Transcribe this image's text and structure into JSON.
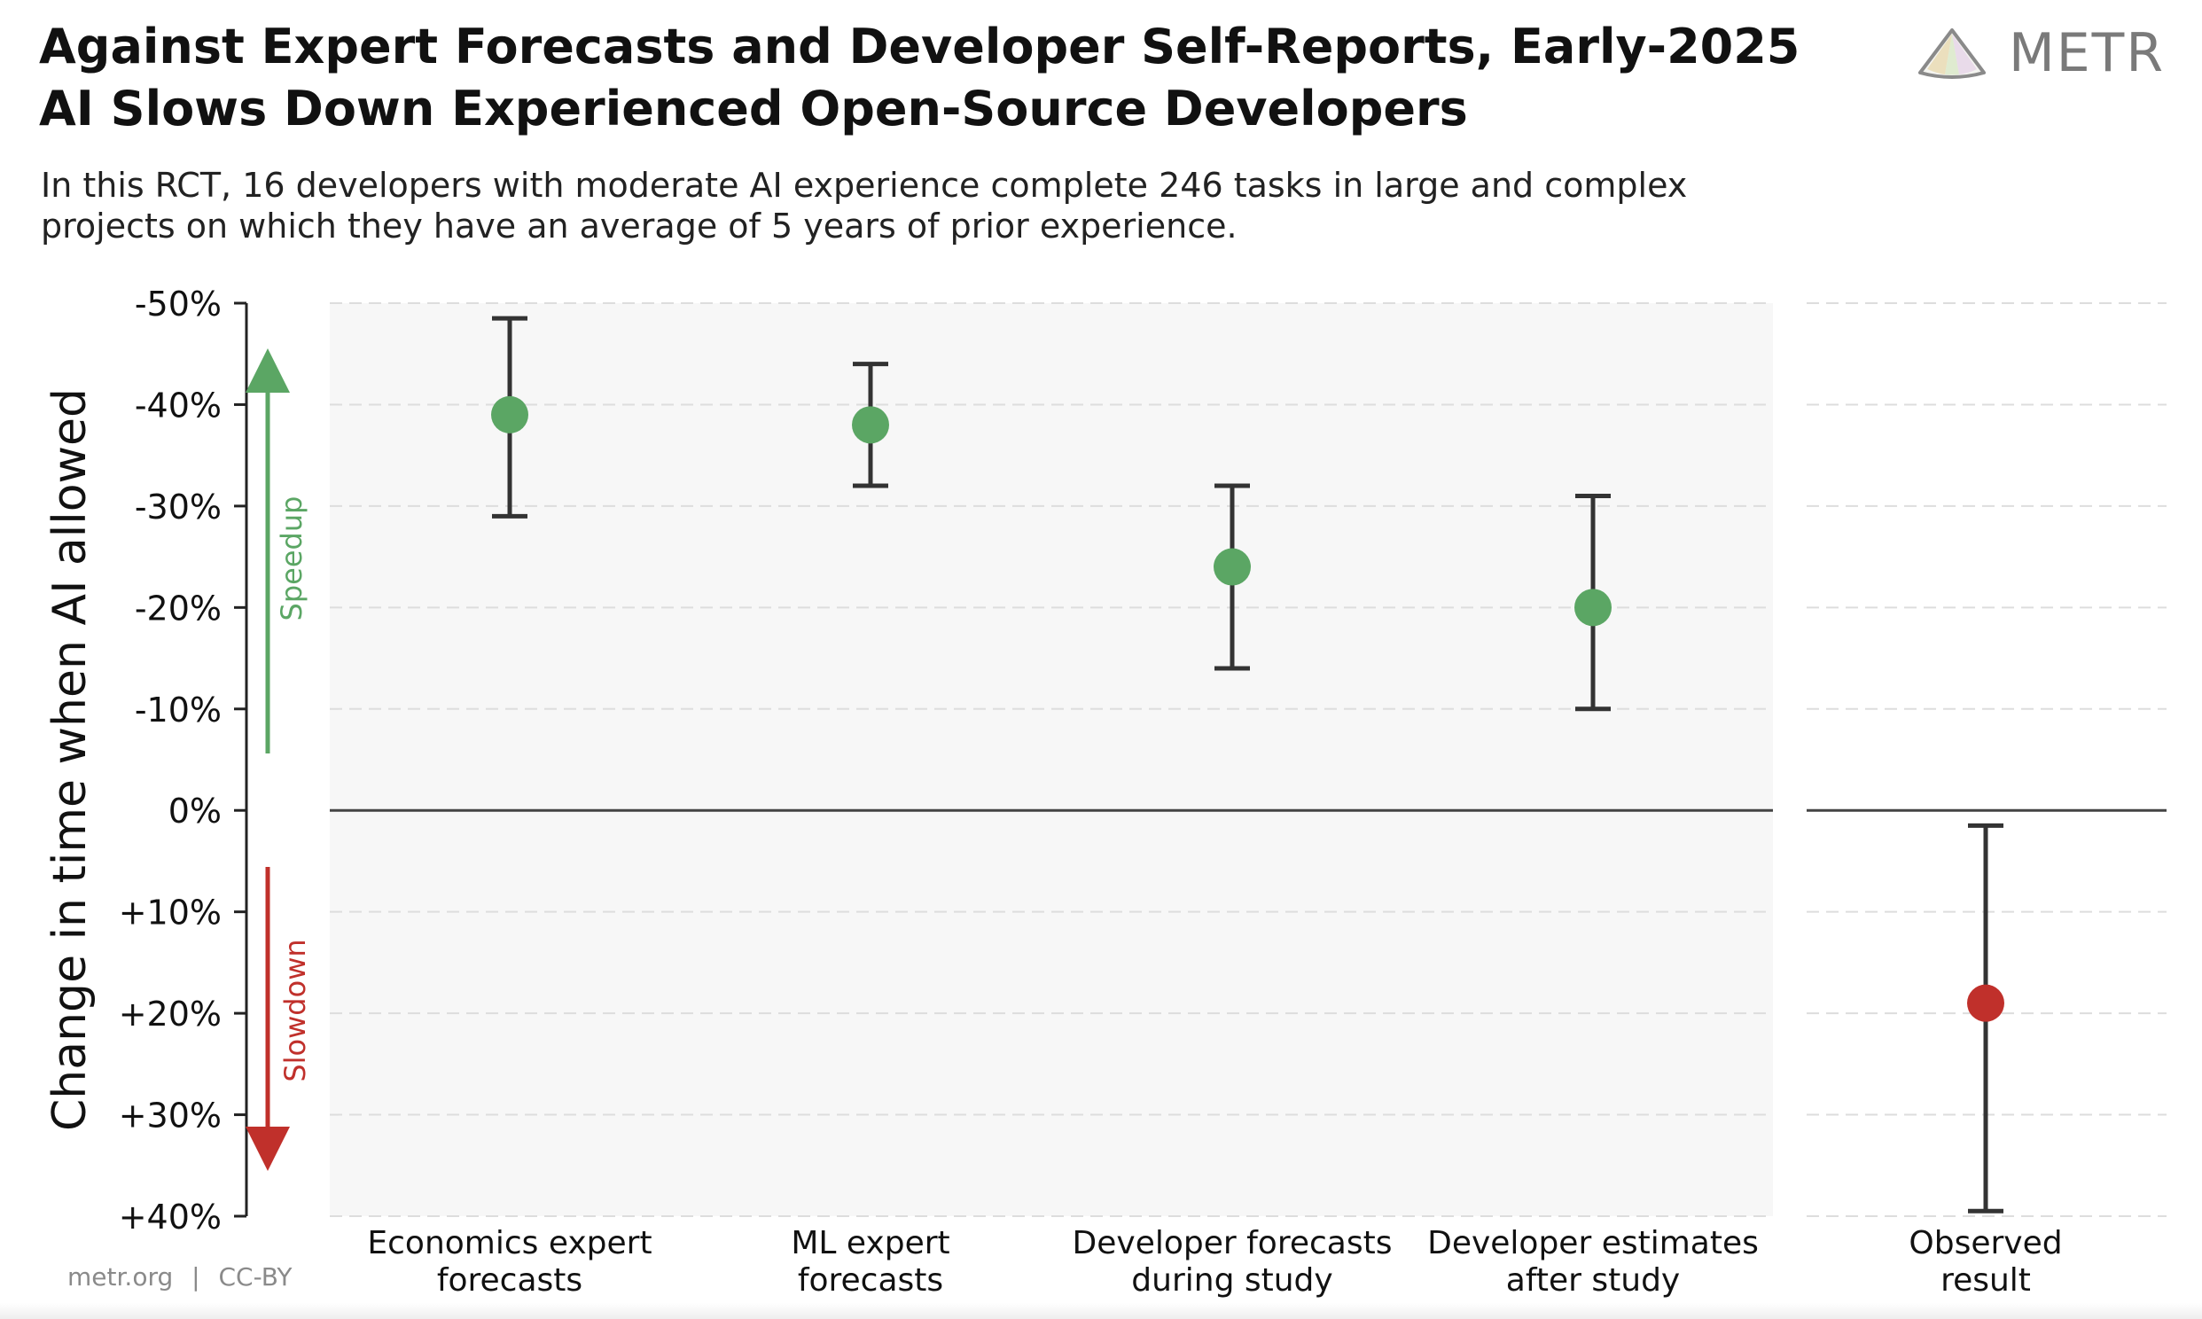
{
  "header": {
    "title_line1": "Against Expert Forecasts and Developer Self-Reports, Early-2025",
    "title_line2": "AI Slows Down Experienced Open-Source Developers",
    "subtitle_line1": "In this RCT, 16 developers with moderate AI experience complete 246 tasks in large and complex",
    "subtitle_line2": "projects on which they have an average of 5 years of prior experience."
  },
  "logo": {
    "text": "METR",
    "icon": "metr-fan-logo-icon"
  },
  "footer": {
    "site": "metr.org",
    "separator": "|",
    "license": "CC-BY"
  },
  "colors": {
    "speedup": "#5ba664",
    "slowdown": "#c0302b",
    "errorbar": "#333333",
    "panel_bg": "#f7f7f7",
    "grid": "#dddddd"
  },
  "chart_data": {
    "type": "scatter",
    "ylabel": "Change in time when AI allowed",
    "ylim": [
      -50,
      40
    ],
    "y_inverted": true,
    "yticks": [
      -50,
      -40,
      -30,
      -20,
      -10,
      0,
      10,
      20,
      30,
      40
    ],
    "ytick_labels": [
      "-50%",
      "-40%",
      "-30%",
      "-20%",
      "-10%",
      "0%",
      "+10%",
      "+20%",
      "+30%",
      "+40%"
    ],
    "grid": true,
    "direction_labels": {
      "up": "Speedup",
      "down": "Slowdown"
    },
    "panels": [
      {
        "name": "forecasts",
        "background": true,
        "points": [
          {
            "label_line1": "Economics expert",
            "label_line2": "forecasts",
            "value": -39,
            "ci_low": -48.5,
            "ci_high": -29,
            "color": "#5ba664"
          },
          {
            "label_line1": "ML expert",
            "label_line2": "forecasts",
            "value": -38,
            "ci_low": -44,
            "ci_high": -32,
            "color": "#5ba664"
          },
          {
            "label_line1": "Developer forecasts",
            "label_line2": "during study",
            "value": -24,
            "ci_low": -32,
            "ci_high": -14,
            "color": "#5ba664"
          },
          {
            "label_line1": "Developer estimates",
            "label_line2": "after study",
            "value": -20,
            "ci_low": -31,
            "ci_high": -10,
            "color": "#5ba664"
          }
        ]
      },
      {
        "name": "observed",
        "background": false,
        "points": [
          {
            "label_line1": "Observed",
            "label_line2": "result",
            "value": 19,
            "ci_low": 1.5,
            "ci_high": 39.5,
            "color": "#c0302b"
          }
        ]
      }
    ]
  }
}
